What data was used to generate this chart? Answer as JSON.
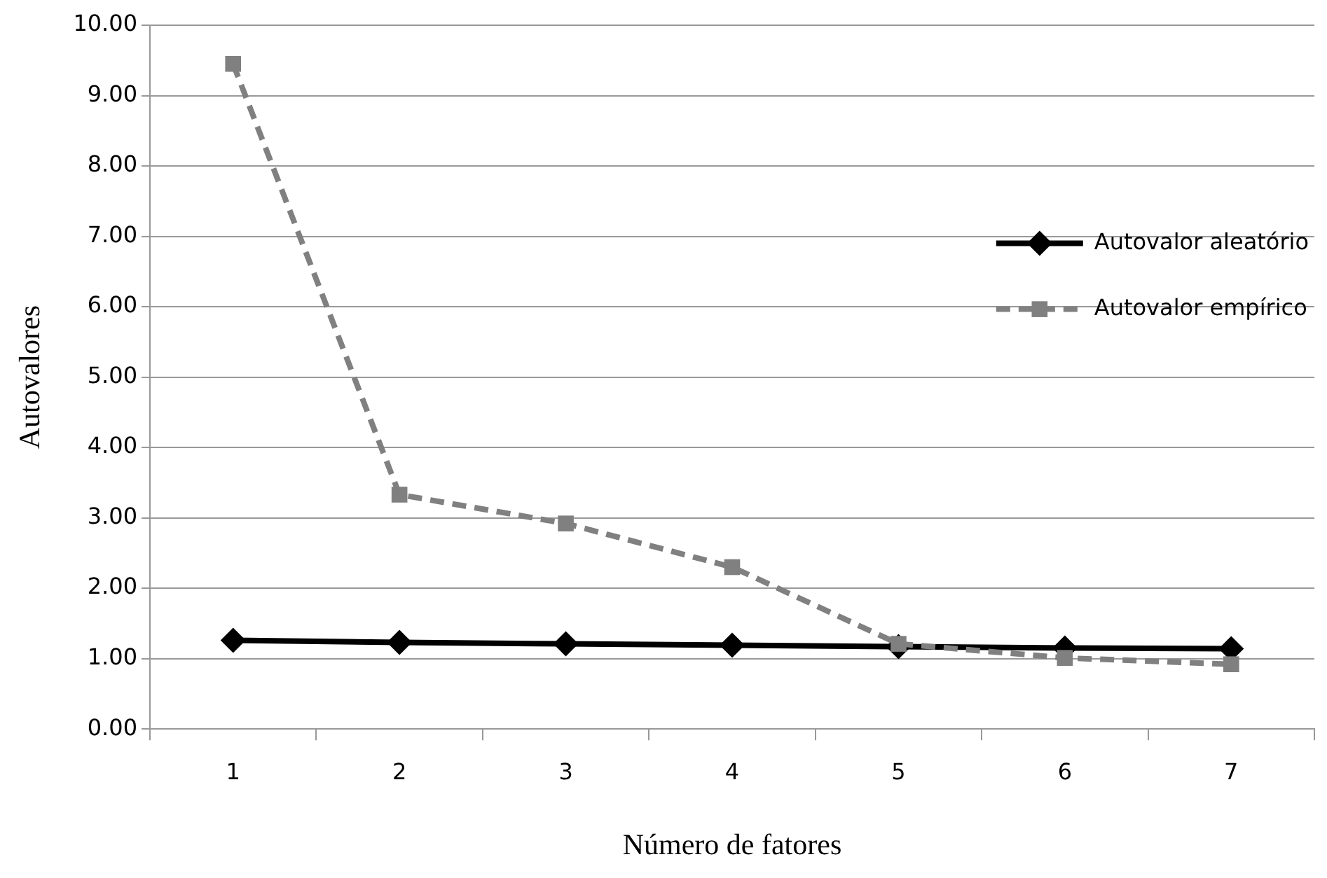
{
  "chart_data": {
    "type": "line",
    "xlabel": "Número de fatores",
    "ylabel": "Autovalores",
    "categories": [
      "1",
      "2",
      "3",
      "4",
      "5",
      "6",
      "7"
    ],
    "series": [
      {
        "name": "Autovalor aleatório",
        "color": "#000000",
        "marker": "diamond",
        "line_style": "solid",
        "values": [
          1.26,
          1.23,
          1.21,
          1.19,
          1.17,
          1.15,
          1.14
        ]
      },
      {
        "name": "Autovalor empírico",
        "color": "#808080",
        "marker": "square",
        "line_style": "dashed",
        "values": [
          9.45,
          3.33,
          2.92,
          2.3,
          1.21,
          1.01,
          0.92
        ]
      }
    ],
    "ylim": [
      0,
      10
    ],
    "yticks": [
      {
        "value": 0,
        "label": "0.00"
      },
      {
        "value": 1,
        "label": "1.00"
      },
      {
        "value": 2,
        "label": "2.00"
      },
      {
        "value": 3,
        "label": "3.00"
      },
      {
        "value": 4,
        "label": "4.00"
      },
      {
        "value": 5,
        "label": "5.00"
      },
      {
        "value": 6,
        "label": "6.00"
      },
      {
        "value": 7,
        "label": "7.00"
      },
      {
        "value": 8,
        "label": "8.00"
      },
      {
        "value": 9,
        "label": "9.00"
      },
      {
        "value": 10,
        "label": "10.00"
      }
    ],
    "grid": "y",
    "legend": "right"
  }
}
